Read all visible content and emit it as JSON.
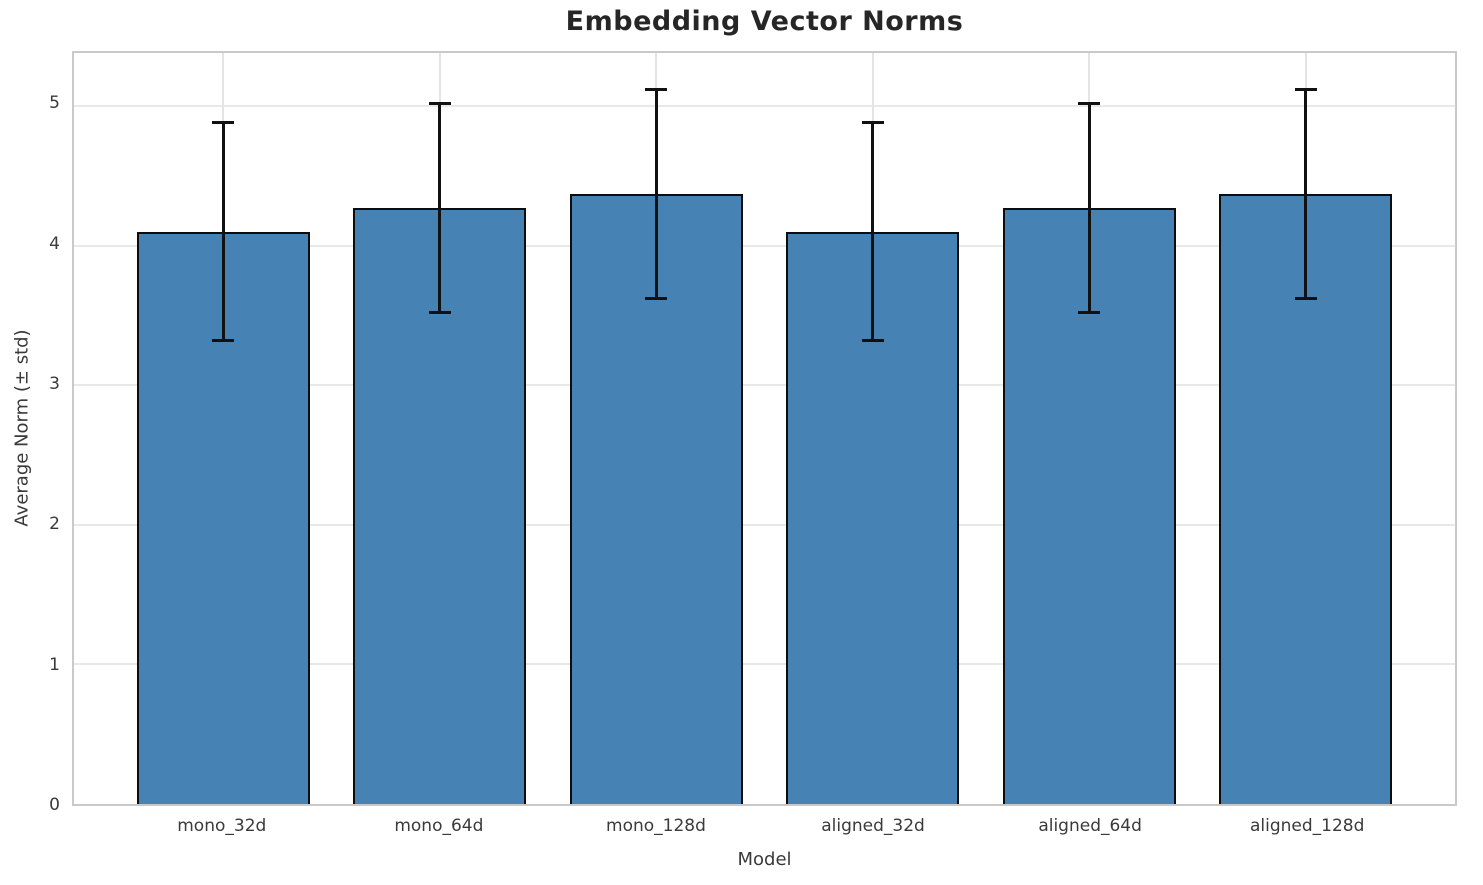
{
  "chart_data": {
    "type": "bar",
    "title": "Embedding Vector Norms",
    "xlabel": "Model",
    "ylabel": "Average Norm (± std)",
    "categories": [
      "mono_32d",
      "mono_64d",
      "mono_128d",
      "aligned_32d",
      "aligned_64d",
      "aligned_128d"
    ],
    "values": [
      4.1,
      4.27,
      4.37,
      4.1,
      4.27,
      4.37
    ],
    "errors": [
      0.78,
      0.75,
      0.75,
      0.78,
      0.75,
      0.75
    ],
    "error_tops": [
      4.88,
      5.02,
      5.12,
      4.88,
      5.02,
      5.12
    ],
    "error_bottoms": [
      3.32,
      3.52,
      3.62,
      3.32,
      3.52,
      3.62
    ],
    "yticks": [
      0,
      1,
      2,
      3,
      4,
      5
    ],
    "ylim": [
      0,
      5.38
    ],
    "xlim": [
      -0.69,
      5.69
    ],
    "bar_width": 0.8,
    "grid": "on",
    "legend": "none",
    "bar_color": "#4682b4",
    "bar_edge_color": "#0d0d0d",
    "error_color": "#111111",
    "grid_color": "#e8e8e8",
    "spine_color": "#c9c9c9",
    "title_color": "#262626",
    "tick_color": "#3a3a3a",
    "background_color": "#ffffff"
  }
}
